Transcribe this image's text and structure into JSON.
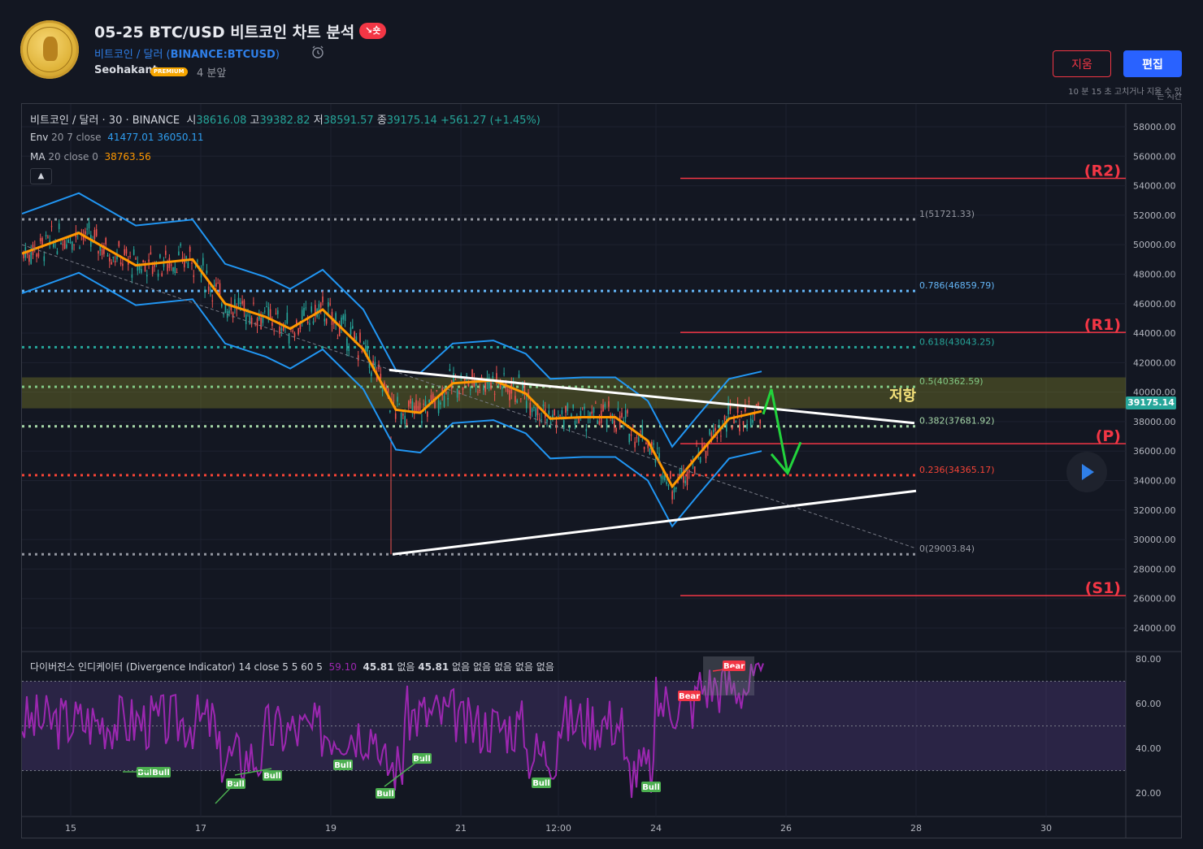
{
  "header": {
    "title": "05-25 BTC/USD 비트코인 차트 분석",
    "badge": "↘숏",
    "symbol_name": "비트코인 / 달러",
    "symbol_ticker": "BINANCE:BTCUSD",
    "author": "Seohakant",
    "premium": "PREMIUM",
    "time_ago": "4 분앞",
    "delete_label": "지움",
    "edit_label": "편집",
    "edit_note": "10 분 15 초 고치거나 지울 수 있",
    "edit_note2": "는 시간"
  },
  "legend": {
    "symbol": "비트코인 / 달러 · 30 · BINANCE",
    "o_label": "시",
    "o": "38616.08",
    "h_label": "고",
    "h": "39382.82",
    "l_label": "저",
    "l": "38591.57",
    "c_label": "종",
    "c": "39175.14",
    "change": "+561.27 (+1.45%)",
    "env_label": "Env",
    "env_params": "20 7 close",
    "env_upper": "41477.01",
    "env_lower": "36050.11",
    "ma_label": "MA",
    "ma_params": "20 close 0",
    "ma_value": "38763.56",
    "collapse_icon": "chevron-up-icon"
  },
  "divergence_legend": {
    "name": "다이버전스 인디케이터 (Divergence Indicator)",
    "params": "14 close 5 5 60 5",
    "v1": "59.10",
    "v2": "45.81",
    "v3": "없음",
    "v4": "45.81",
    "v5": "없음",
    "v6": "없음",
    "v7": "없음",
    "v8": "없음",
    "v9": "없음"
  },
  "chart_data": {
    "type": "candlestick",
    "symbol": "BTCUSD",
    "interval": "30",
    "exchange": "BINANCE",
    "current_price": "39175.14",
    "y_ticks": [
      "58000.00",
      "56000.00",
      "54000.00",
      "52000.00",
      "50000.00",
      "48000.00",
      "46000.00",
      "44000.00",
      "42000.00",
      "40000.00",
      "38000.00",
      "36000.00",
      "34000.00",
      "32000.00",
      "30000.00",
      "28000.00",
      "26000.00",
      "24000.00"
    ],
    "x_ticks": [
      "15",
      "17",
      "19",
      "21",
      "12:00",
      "24",
      "26",
      "28",
      "30"
    ],
    "fib_levels": [
      {
        "label": "1(51721.33)",
        "value": 51721.33,
        "color": "#9598a1"
      },
      {
        "label": "0.786(46859.79)",
        "value": 46859.79,
        "color": "#64b5f6"
      },
      {
        "label": "0.618(43043.25)",
        "value": 43043.25,
        "color": "#26a69a"
      },
      {
        "label": "0.5(40362.59)",
        "value": 40362.59,
        "color": "#81c784"
      },
      {
        "label": "0.382(37681.92)",
        "value": 37681.92,
        "color": "#a5d6a7"
      },
      {
        "label": "0.236(34365.17)",
        "value": 34365.17,
        "color": "#f44336"
      },
      {
        "label": "0(29003.84)",
        "value": 29003.84,
        "color": "#9598a1"
      }
    ],
    "pivot_levels": [
      {
        "label": "(R2)",
        "value": 54500
      },
      {
        "label": "(R1)",
        "value": 44050
      },
      {
        "label": "(P)",
        "value": 36500
      },
      {
        "label": "(S1)",
        "value": 26200
      }
    ],
    "resistance_label": "저항",
    "resistance_zone": [
      38900,
      41000
    ],
    "osc_ticks": [
      "80.00",
      "60.00",
      "40.00",
      "20.00"
    ],
    "osc_labels": [
      "Bull",
      "Bull",
      "Bull",
      "Bull",
      "Bull",
      "Bull",
      "Bull",
      "Bull",
      "Bull",
      "Bear",
      "Bear"
    ]
  }
}
